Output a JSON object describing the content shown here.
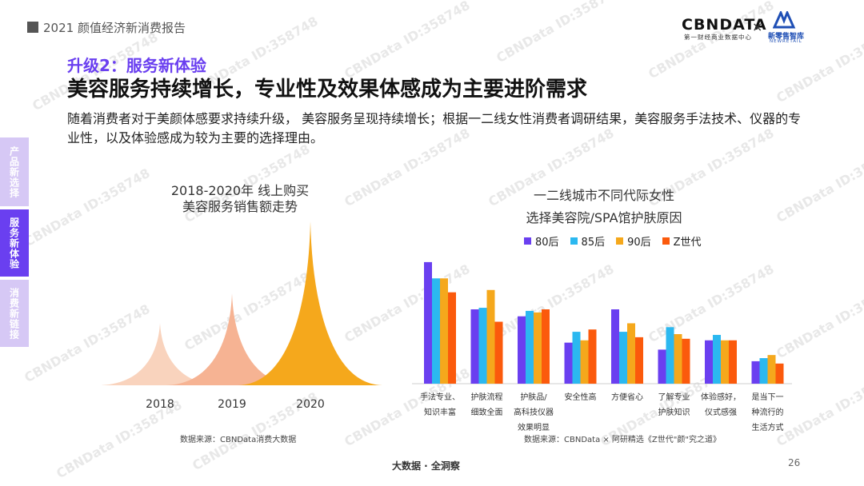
{
  "header": {
    "report_title": "2021 颜值经济新消费报告",
    "logo_cbndata": "CBNDATA",
    "logo_cbndata_sub": "第一财经商业数据中心",
    "logo_x": "×",
    "logo_partner": "新零售智库",
    "logo_partner_sub": "NEWRETAIL"
  },
  "section": {
    "subtitle": "升级2：服务新体验",
    "headline": "美容服务持续增长，专业性及效果体感成为主要进阶需求",
    "description": "随着消费者对于美颜体感要求持续升级， 美容服务呈现持续增长；根据一二线女性消费者调研结果，美容服务手法技术、仪器的专业性，以及体验感成为较为主要的选择理由。"
  },
  "side_nav": {
    "items": [
      {
        "label": "产品新选择"
      },
      {
        "label": "服务新体验"
      },
      {
        "label": "消费新链接"
      }
    ]
  },
  "colors": {
    "accent": "#6a3ff0",
    "nav_inactive": "#d6c8f5",
    "peak_2018": "#f9d3bd",
    "peak_2019": "#f6b393",
    "peak_2020": "#f5a81c",
    "s_80": "#6a3ff0",
    "s_85": "#2bb8f0",
    "s_90": "#f5a81c",
    "s_z": "#fb5a0c"
  },
  "chart_data": [
    {
      "type": "area",
      "title_lines": [
        "2018-2020年 线上购买",
        "美容服务销售额走势"
      ],
      "categories": [
        "2018",
        "2019",
        "2020"
      ],
      "values": [
        0.38,
        0.56,
        1.0
      ],
      "value_note": "relative peak heights, no axis shown",
      "source": "数据来源：CBNData消费大数据"
    },
    {
      "type": "bar",
      "title_lines": [
        "一二线城市不同代际女性",
        "选择美容院/SPA馆护肤原因"
      ],
      "legend_position": "top",
      "categories": [
        [
          "手法专业、",
          "知识丰富"
        ],
        [
          "护肤流程",
          "细致全面"
        ],
        [
          "护肤品/",
          "高科技仪器",
          "效果明显"
        ],
        [
          "安全性高"
        ],
        [
          "方便省心"
        ],
        [
          "了解专业",
          "护肤知识"
        ],
        [
          "体验感好，",
          "仪式感强"
        ],
        [
          "是当下一",
          "种流行的",
          "生活方式"
        ]
      ],
      "series": [
        {
          "name": "80后",
          "values": [
            157,
            96,
            87,
            53,
            96,
            44,
            56,
            29
          ]
        },
        {
          "name": "85后",
          "values": [
            136,
            98,
            94,
            67,
            67,
            73,
            63,
            33
          ]
        },
        {
          "name": "90后",
          "values": [
            136,
            121,
            92,
            56,
            78,
            64,
            56,
            37
          ]
        },
        {
          "name": "Z世代",
          "values": [
            118,
            80,
            96,
            70,
            60,
            58,
            56,
            26
          ]
        }
      ],
      "ylim": [
        0,
        160
      ],
      "grid": false,
      "source": "数据来源：CBNData × 阿研精选《Z世代\"颜\"究之道》"
    }
  ],
  "footer": {
    "tagline": "大数据 · 全洞察",
    "page_number": "26"
  },
  "watermark": "CBNData ID:358748"
}
